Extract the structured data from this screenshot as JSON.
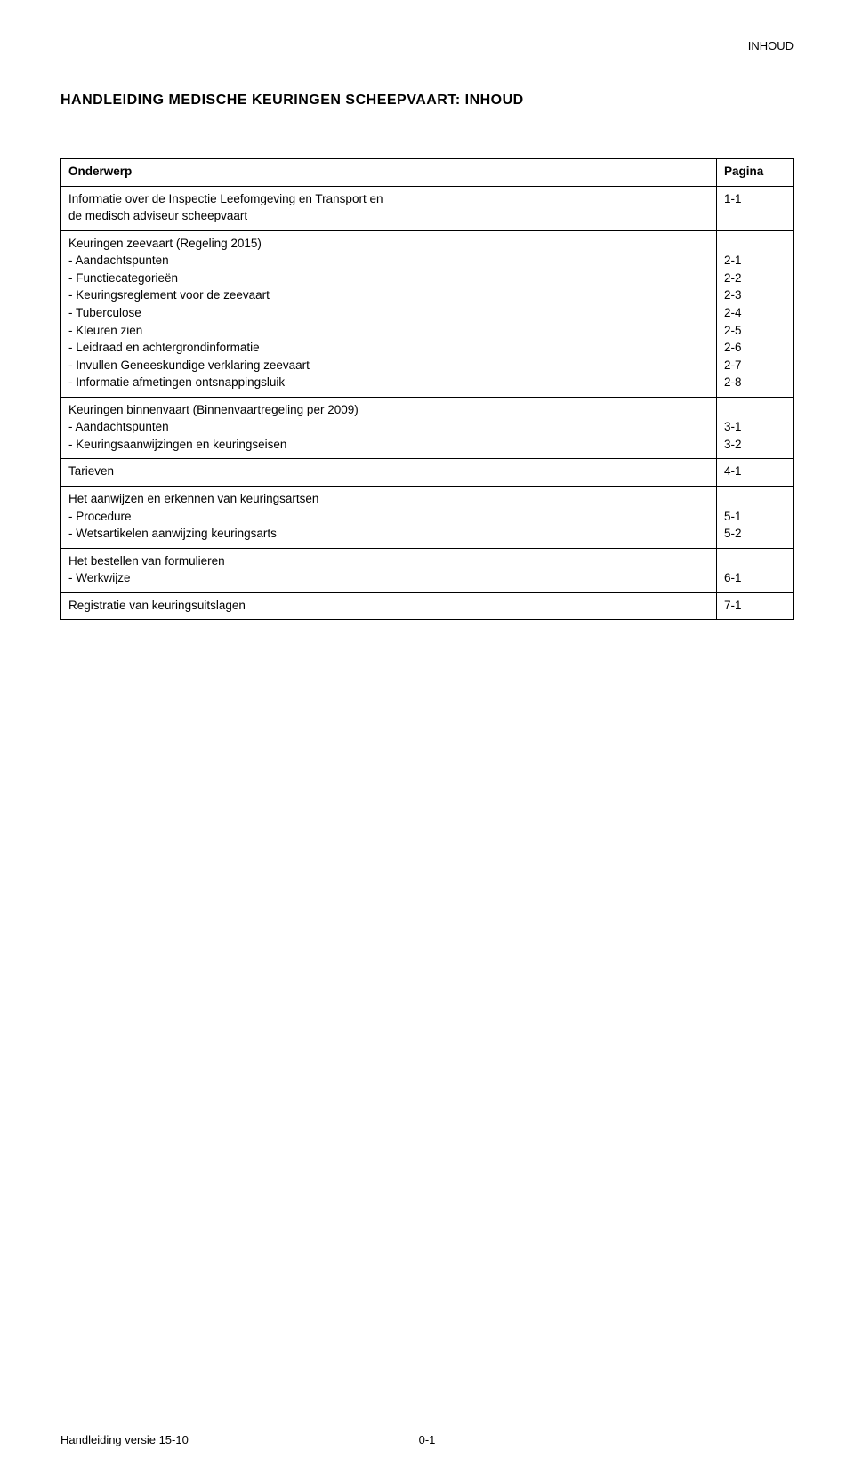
{
  "header": {
    "top_right": "INHOUD"
  },
  "title": "HANDLEIDING MEDISCHE KEURINGEN SCHEEPVAART: INHOUD",
  "columns": {
    "subject": "Onderwerp",
    "page": "Pagina"
  },
  "sections": [
    {
      "lines": [
        {
          "label": "Informatie over de Inspectie Leefomgeving en Transport en",
          "page": "1-1"
        },
        {
          "label": "de medisch adviseur scheepvaart",
          "page": ""
        }
      ]
    },
    {
      "lines": [
        {
          "label": "Keuringen zeevaart (Regeling 2015)",
          "page": ""
        },
        {
          "label": "- Aandachtspunten",
          "page": "2-1"
        },
        {
          "label": "- Functiecategorieën",
          "page": "2-2"
        },
        {
          "label": "- Keuringsreglement voor de zeevaart",
          "page": "2-3"
        },
        {
          "label": "- Tuberculose",
          "page": "2-4"
        },
        {
          "label": "- Kleuren zien",
          "page": "2-5"
        },
        {
          "label": "- Leidraad en achtergrondinformatie",
          "page": "2-6"
        },
        {
          "label": "- Invullen Geneeskundige verklaring zeevaart",
          "page": "2-7"
        },
        {
          "label": "- Informatie afmetingen ontsnappingsluik",
          "page": "2-8"
        }
      ]
    },
    {
      "lines": [
        {
          "label": "Keuringen binnenvaart (Binnenvaartregeling per 2009)",
          "page": ""
        },
        {
          "label": "- Aandachtspunten",
          "page": "3-1"
        },
        {
          "label": "- Keuringsaanwijzingen en keuringseisen",
          "page": "3-2"
        }
      ]
    },
    {
      "lines": [
        {
          "label": "Tarieven",
          "page": "4-1"
        }
      ]
    },
    {
      "lines": [
        {
          "label": "Het aanwijzen en erkennen van keuringsartsen",
          "page": ""
        },
        {
          "label": "- Procedure",
          "page": "5-1"
        },
        {
          "label": "- Wetsartikelen aanwijzing keuringsarts",
          "page": "5-2"
        }
      ]
    },
    {
      "lines": [
        {
          "label": "Het bestellen van formulieren",
          "page": ""
        },
        {
          "label": "- Werkwijze",
          "page": "6-1"
        }
      ]
    },
    {
      "lines": [
        {
          "label": "Registratie van keuringsuitslagen",
          "page": "7-1"
        }
      ]
    }
  ],
  "footer": {
    "left": "Handleiding versie 15-10",
    "center": "0-1"
  }
}
